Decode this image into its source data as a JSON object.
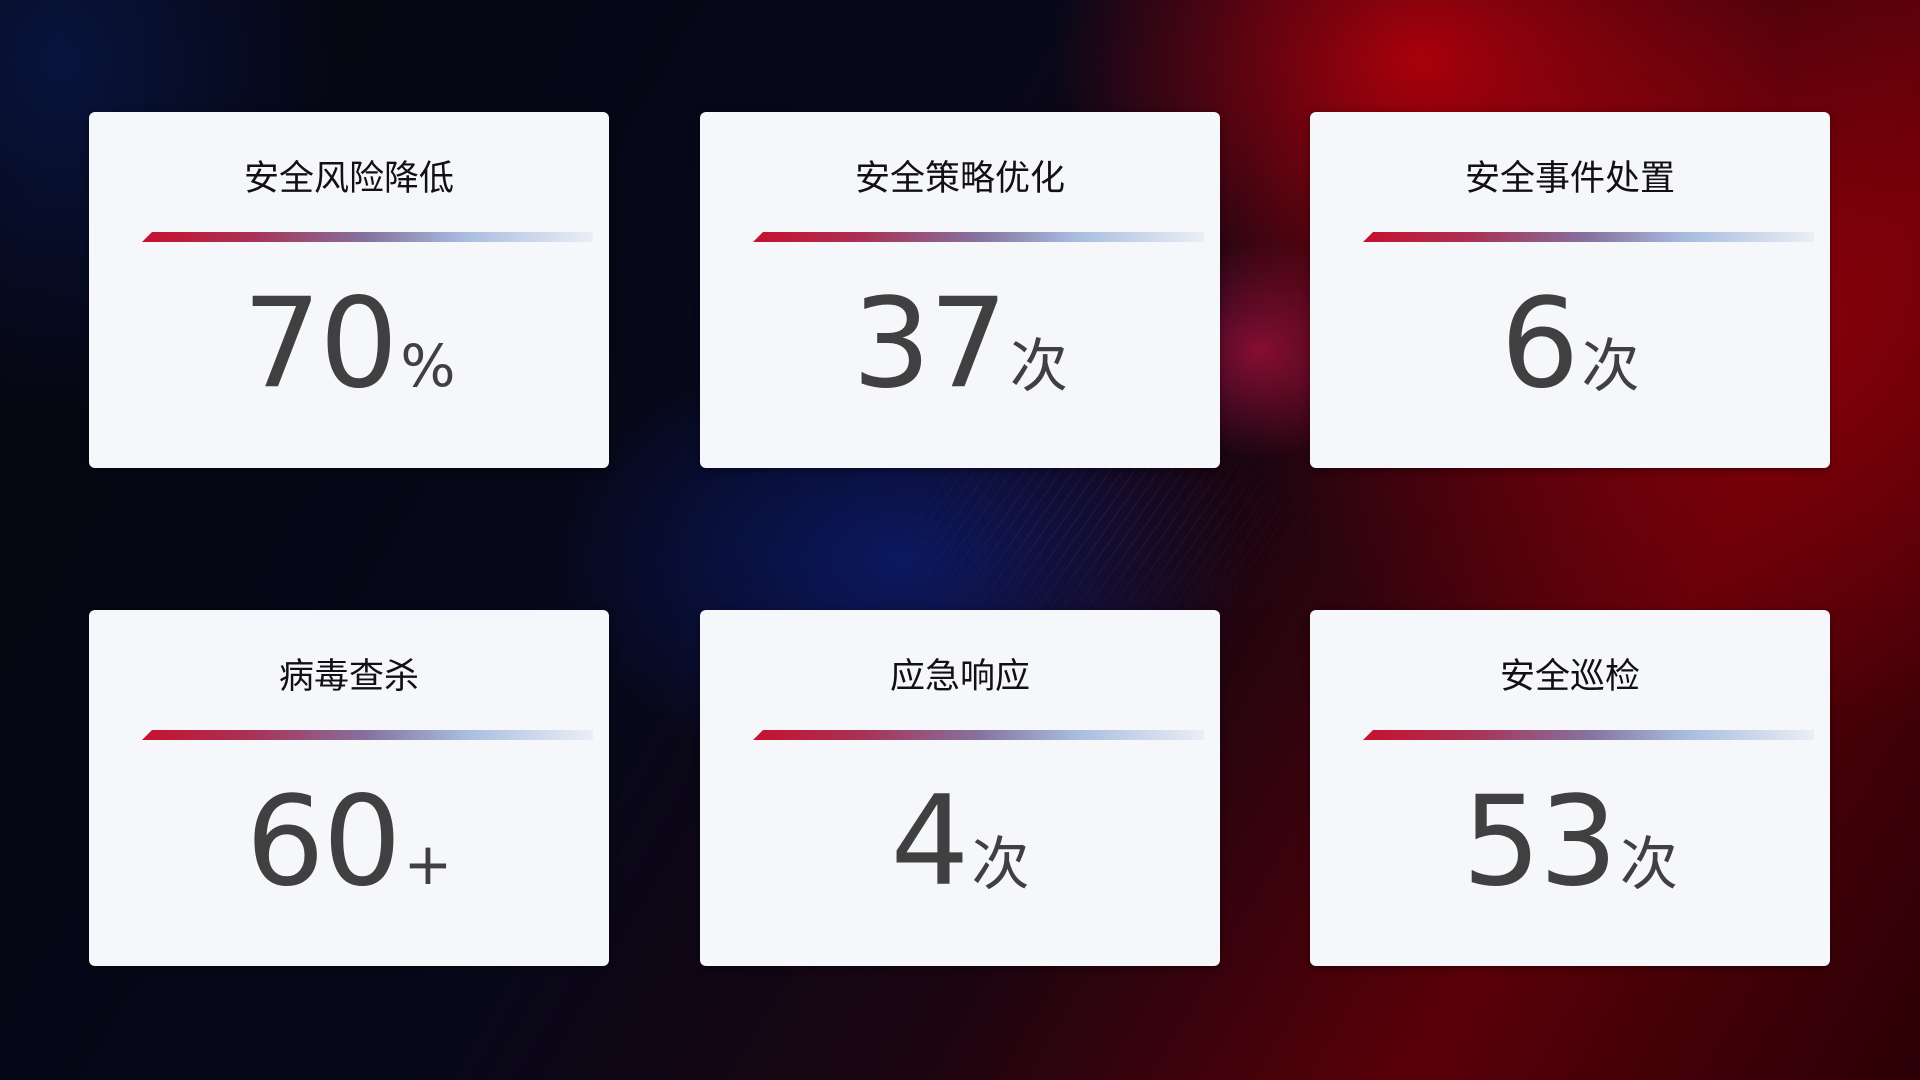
{
  "cards": [
    {
      "title": "安全风险降低",
      "value": "70",
      "unit": "%"
    },
    {
      "title": "安全策略优化",
      "value": "37",
      "unit": "次"
    },
    {
      "title": "安全事件处置",
      "value": "6",
      "unit": "次"
    },
    {
      "title": "病毒查杀",
      "value": "60",
      "unit": "+"
    },
    {
      "title": "应急响应",
      "value": "4",
      "unit": "次"
    },
    {
      "title": "安全巡检",
      "value": "53",
      "unit": "次"
    }
  ],
  "colors": {
    "accent_red": "#c8102e",
    "accent_blue": "#8572a0",
    "card_bg": "#f5f7fb",
    "value_text": "#404040"
  }
}
